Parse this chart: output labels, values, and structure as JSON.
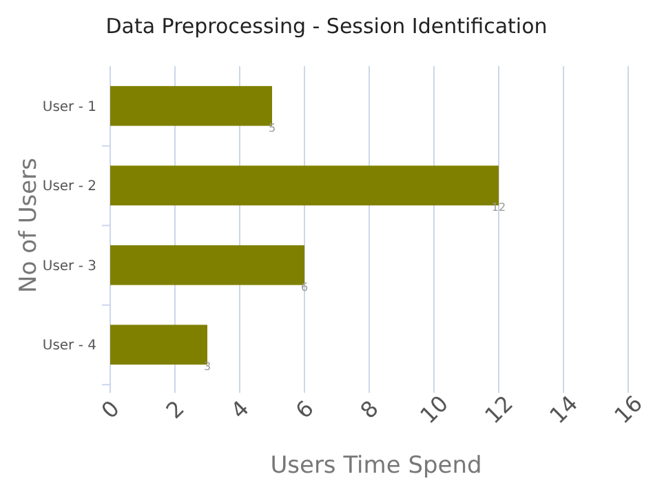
{
  "chart_data": {
    "type": "bar",
    "orientation": "horizontal",
    "title": "Data Preprocessing - Session Identification",
    "xlabel": "Users Time Spend",
    "ylabel": "No of Users",
    "categories": [
      "User - 1",
      "User - 2",
      "User - 3",
      "User - 4"
    ],
    "values": [
      5,
      12,
      6,
      3
    ],
    "color": "#808000",
    "xlim": [
      0,
      16
    ],
    "xticks": [
      0,
      2,
      4,
      6,
      8,
      10,
      12,
      14,
      16
    ],
    "grid": "x",
    "data_labels": true
  }
}
